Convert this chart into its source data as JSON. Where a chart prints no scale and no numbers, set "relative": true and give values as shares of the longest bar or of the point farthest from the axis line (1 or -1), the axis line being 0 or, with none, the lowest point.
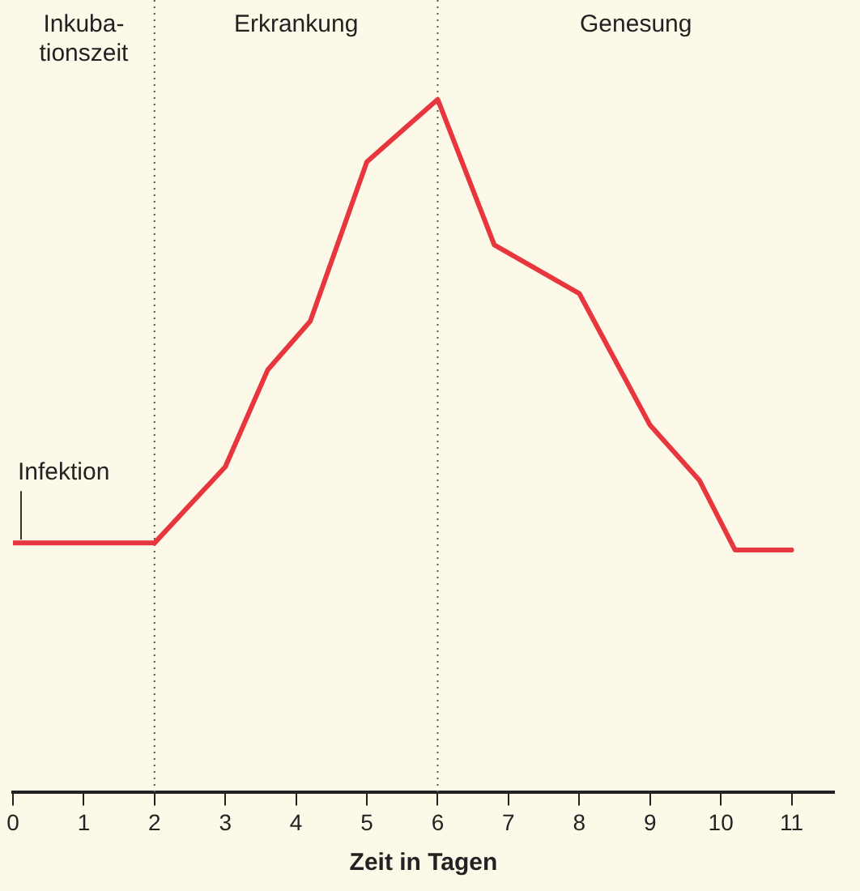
{
  "chart_data": {
    "type": "line",
    "relative": true,
    "xlabel": "Zeit in Tagen",
    "xlim": [
      0,
      11.6
    ],
    "xticks": [
      0,
      1,
      2,
      3,
      4,
      5,
      6,
      7,
      8,
      9,
      10,
      11
    ],
    "grid": false,
    "legend": false,
    "marker": "none",
    "line_style": "solid",
    "series": [
      {
        "color": "#e8363f",
        "x": [
          0,
          2,
          3,
          3.6,
          4.2,
          5,
          6,
          6.8,
          8,
          9,
          9.7,
          10.2,
          11
        ],
        "values": [
          0.36,
          0.36,
          0.47,
          0.61,
          0.68,
          0.91,
          1,
          0.79,
          0.72,
          0.53,
          0.45,
          0.35,
          0.35
        ]
      }
    ],
    "ref_lines": [
      {
        "axis": "x",
        "value": 2,
        "color": "#555555",
        "line_style": "dotted"
      },
      {
        "axis": "x",
        "value": 6,
        "color": "#555555",
        "line_style": "dotted"
      }
    ],
    "annotations": [
      "Inkuba-\ntionszeit",
      "Erkrankung",
      "Genesung",
      {
        "text": "Infektion",
        "x": 0,
        "y": 0.36
      }
    ]
  }
}
